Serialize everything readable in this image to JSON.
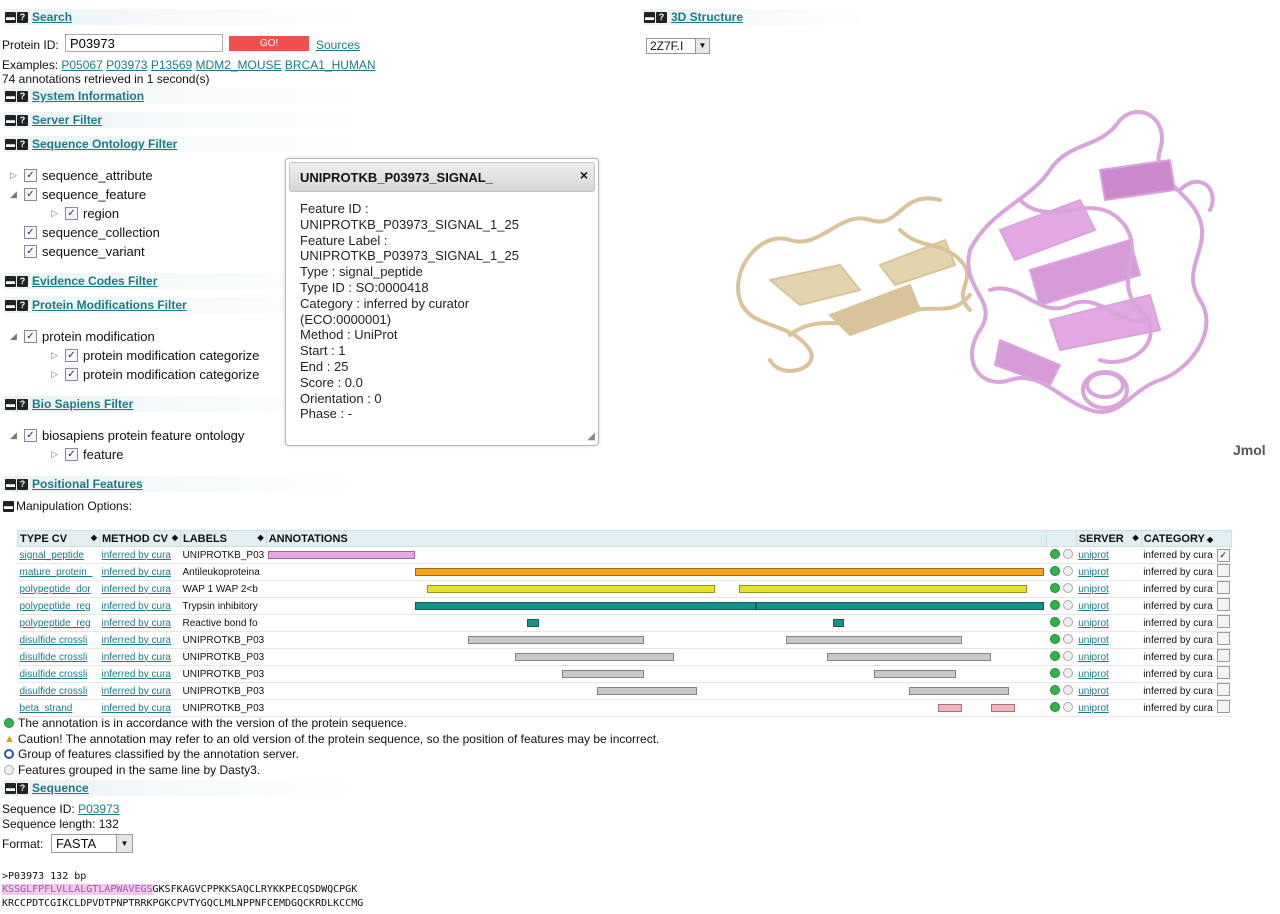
{
  "search": {
    "title": "Search",
    "protein_id_label": "Protein ID:",
    "protein_id_value": "P03973",
    "go_label": "GO!",
    "sources_link": "Sources",
    "examples_label": "Examples:",
    "examples": [
      "P05067",
      "P03973",
      "P13569",
      "MDM2_MOUSE",
      "BRCA1_HUMAN"
    ],
    "status": "74 annotations retrieved in 1 second(s)"
  },
  "sections": {
    "system_information": "System Information",
    "server_filter": "Server Filter",
    "sequence_ontology_filter": "Sequence Ontology Filter",
    "evidence_codes_filter": "Evidence Codes Filter",
    "protein_modifications_filter": "Protein Modifications Filter",
    "bio_sapiens_filter": "Bio Sapiens Filter",
    "positional_features": "Positional Features",
    "sequence": "Sequence",
    "structure": "3D Structure"
  },
  "so_tree": [
    "sequence_attribute",
    "sequence_feature",
    "region",
    "sequence_collection",
    "sequence_variant"
  ],
  "pm_tree": [
    "protein modification",
    "protein modification categorize",
    "protein modification categorize"
  ],
  "bs_tree": [
    "biosapiens protein feature ontology",
    "feature"
  ],
  "structure": {
    "selected_pdb": "2Z7F.I",
    "viewer_label": "Jmol",
    "colors": {
      "chain_a": "#e0a6e2",
      "chain_b": "#d9c39b"
    }
  },
  "popup": {
    "title": "UNIPROTKB_P03973_SIGNAL_",
    "close": "×",
    "lines": [
      "Feature ID :",
      "UNIPROTKB_P03973_SIGNAL_1_25",
      "Feature Label :",
      "UNIPROTKB_P03973_SIGNAL_1_25",
      "Type : signal_peptide",
      "Type ID : SO:0000418",
      "Category : inferred by curator",
      "(ECO:0000001)",
      "Method : UniProt",
      "Start : 1",
      "End : 25",
      "Score : 0.0",
      "Orientation : 0",
      "Phase : -"
    ]
  },
  "positional": {
    "manipulation_label": "Manipulation Options:",
    "headers": [
      "TYPE CV",
      "METHOD CV",
      "LABELS",
      "ANNOTATIONS",
      "SERVER",
      "CATEGORY"
    ],
    "sequence_length": 132,
    "rows": [
      {
        "type": "signal_peptide",
        "method": "inferred by cura",
        "label": "UNIPROTKB_P03",
        "server": "uniprot",
        "category": "inferred by cura",
        "checked": true,
        "segments": [
          {
            "start": 1,
            "end": 25,
            "color": "#e8a6e4"
          }
        ]
      },
      {
        "type": "mature_protein_",
        "method": "inferred by cura",
        "label": "Antileukoproteina",
        "server": "uniprot",
        "category": "inferred by cura",
        "checked": false,
        "segments": [
          {
            "start": 26,
            "end": 132,
            "color": "#f5a21c"
          }
        ]
      },
      {
        "type": "polypeptide_dor",
        "method": "inferred by cura",
        "label": "WAP 1 WAP 2<b",
        "server": "uniprot",
        "category": "inferred by cura",
        "checked": false,
        "segments": [
          {
            "start": 28,
            "end": 76,
            "color": "#e9e12a"
          },
          {
            "start": 81,
            "end": 129,
            "color": "#e9e12a"
          }
        ]
      },
      {
        "type": "polypeptide_reg",
        "method": "inferred by cura",
        "label": "Trypsin inhibitory",
        "server": "uniprot",
        "category": "inferred by cura",
        "checked": false,
        "segments": [
          {
            "start": 26,
            "end": 83,
            "color": "#1a9186"
          },
          {
            "start": 84,
            "end": 132,
            "color": "#1a9186"
          }
        ]
      },
      {
        "type": "polypeptide_reg",
        "method": "inferred by cura",
        "label": "Reactive bond fo",
        "server": "uniprot",
        "category": "inferred by cura",
        "checked": false,
        "segments": [
          {
            "start": 45,
            "end": 46,
            "color": "#1a9186"
          },
          {
            "start": 97,
            "end": 98,
            "color": "#1a9186"
          }
        ]
      },
      {
        "type": "disulfide crossli",
        "method": "inferred by cura",
        "label": "UNIPROTKB_P03",
        "server": "uniprot",
        "category": "inferred by cura",
        "checked": false,
        "segments": [
          {
            "start": 35,
            "end": 64,
            "color": "#c9c9c9"
          },
          {
            "start": 89,
            "end": 118,
            "color": "#c9c9c9"
          }
        ]
      },
      {
        "type": "disulfide crossli",
        "method": "inferred by cura",
        "label": "UNIPROTKB_P03",
        "server": "uniprot",
        "category": "inferred by cura",
        "checked": false,
        "segments": [
          {
            "start": 43,
            "end": 69,
            "color": "#c9c9c9"
          },
          {
            "start": 96,
            "end": 123,
            "color": "#c9c9c9"
          }
        ]
      },
      {
        "type": "disulfide crossli",
        "method": "inferred by cura",
        "label": "UNIPROTKB_P03",
        "server": "uniprot",
        "category": "inferred by cura",
        "checked": false,
        "segments": [
          {
            "start": 51,
            "end": 64,
            "color": "#c9c9c9"
          },
          {
            "start": 104,
            "end": 117,
            "color": "#c9c9c9"
          }
        ]
      },
      {
        "type": "disulfide crossli",
        "method": "inferred by cura",
        "label": "UNIPROTKB_P03",
        "server": "uniprot",
        "category": "inferred by cura",
        "checked": false,
        "segments": [
          {
            "start": 57,
            "end": 73,
            "color": "#c9c9c9"
          },
          {
            "start": 110,
            "end": 126,
            "color": "#c9c9c9"
          }
        ]
      },
      {
        "type": "beta_strand",
        "method": "inferred by cura",
        "label": "UNIPROTKB_P03",
        "server": "uniprot",
        "category": "inferred by cura",
        "checked": false,
        "segments": [
          {
            "start": 115,
            "end": 118,
            "color": "#f2b3bf"
          },
          {
            "start": 124,
            "end": 127,
            "color": "#f2b3bf"
          }
        ]
      }
    ]
  },
  "legend": [
    "The annotation is in accordance with the version of the protein sequence.",
    "Caution! The annotation may refer to an old version of the protein sequence, so the position of features may be incorrect.",
    "Group of features classified by the annotation server.",
    "Features grouped in the same line by Dasty3."
  ],
  "sequence": {
    "id_label": "Sequence ID:",
    "id_value": "P03973",
    "length_text": "Sequence length: 132",
    "format_label": "Format:",
    "format_value": "FASTA",
    "fasta_header": ">P03973 132 bp",
    "line1_highlight": "KSSGLFPFLVLLALGTLAPWAVEGS",
    "line1_rest": "GKSFKAGVCPPKKSAQCLRYKKPECQSDWQCPGK",
    "line2": "KRCCPDTCGIKCLDPVDTPNPTRRKPGKCPVTYGQCLMLNPPNFCEMDGQCKRDLKCCMG"
  }
}
